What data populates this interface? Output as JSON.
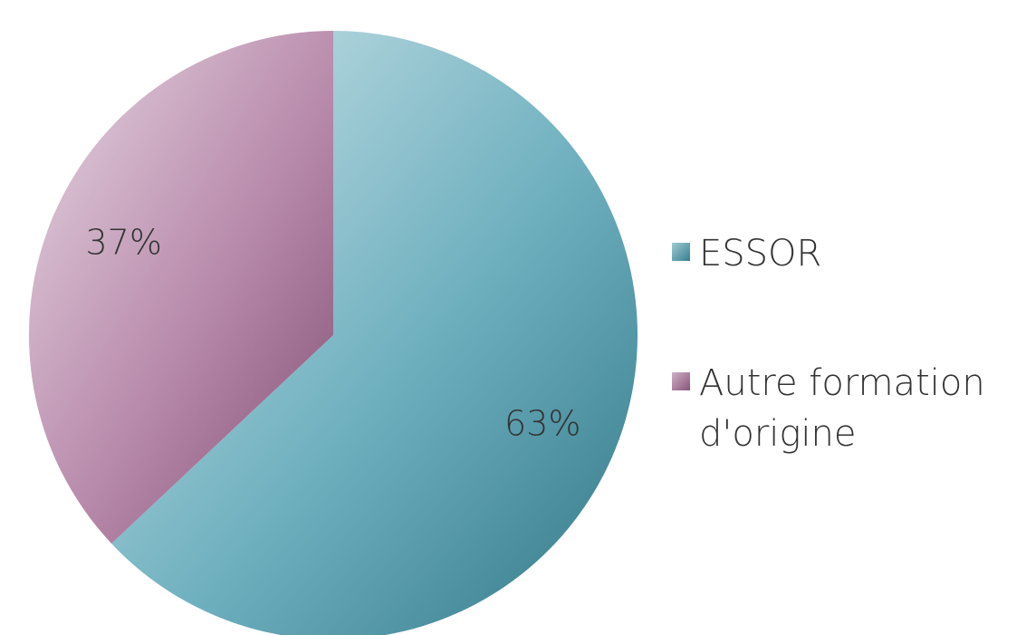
{
  "chart_data": {
    "type": "pie",
    "categories": [
      "ESSOR",
      "Autre formation d'origine"
    ],
    "values": [
      63,
      37
    ],
    "value_labels": [
      "63%",
      "37%"
    ],
    "colors": [
      "#3f95a9",
      "#a0638f"
    ],
    "legend": "right"
  }
}
